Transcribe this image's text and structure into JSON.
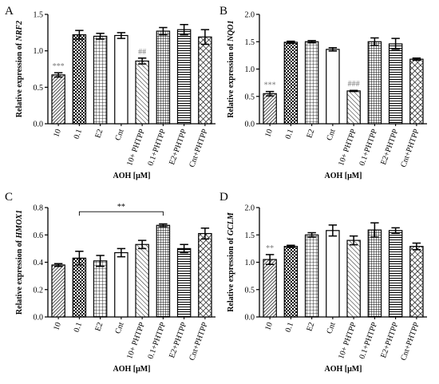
{
  "chart_data": [
    {
      "type": "bar",
      "panel": "A",
      "ylabel_prefix": "Relative expression of ",
      "ylabel_gene": "NRF2",
      "xlabel": "AOH [μM]",
      "ylim": [
        0,
        1.5
      ],
      "yticks": [
        "0.0",
        "0.5",
        "1.0",
        "1.5"
      ],
      "categories": [
        "10",
        "0.1",
        "E2",
        "Cnt",
        "10+ PHTPP",
        "0.1+PHTPP",
        "E2+PHTPP",
        "Cnt+PHTPP"
      ],
      "values": [
        0.67,
        1.22,
        1.2,
        1.21,
        0.86,
        1.27,
        1.29,
        1.19
      ],
      "errors": [
        0.03,
        0.06,
        0.04,
        0.04,
        0.04,
        0.05,
        0.07,
        0.1
      ],
      "annotations": [
        {
          "text": "***",
          "category": 0
        },
        {
          "text": "##",
          "category": 4
        }
      ],
      "bracket": null
    },
    {
      "type": "bar",
      "panel": "B",
      "ylabel_prefix": "Relative expression of ",
      "ylabel_gene": "NQO1",
      "xlabel": "AOH [μM]",
      "ylim": [
        0,
        2.0
      ],
      "yticks": [
        "0.0",
        "0.5",
        "1.0",
        "1.5",
        "2.0"
      ],
      "categories": [
        "10",
        "0.1",
        "E2",
        "Cnt",
        "10+ PHTPP",
        "0.1+PHTPP",
        "E2+PHTPP",
        "Cnt+PHTPP"
      ],
      "values": [
        0.55,
        1.49,
        1.5,
        1.36,
        0.6,
        1.5,
        1.46,
        1.18
      ],
      "errors": [
        0.04,
        0.02,
        0.02,
        0.03,
        0.01,
        0.07,
        0.1,
        0.02
      ],
      "annotations": [
        {
          "text": "***",
          "category": 0
        },
        {
          "text": "###",
          "category": 4
        }
      ],
      "bracket": null
    },
    {
      "type": "bar",
      "panel": "C",
      "ylabel_prefix": "Relative expression of ",
      "ylabel_gene": "HMOX1",
      "xlabel": "AOH [μM]",
      "ylim": [
        0,
        0.8
      ],
      "yticks": [
        "0.0",
        "0.2",
        "0.4",
        "0.6",
        "0.8"
      ],
      "categories": [
        "10",
        "0.1",
        "E2",
        "Cnt",
        "10+ PHTPP",
        "0.1+PHTPP",
        "E2+PHTPP",
        "Cnt+PHTPP"
      ],
      "values": [
        0.38,
        0.43,
        0.41,
        0.47,
        0.53,
        0.67,
        0.5,
        0.61
      ],
      "errors": [
        0.01,
        0.05,
        0.04,
        0.03,
        0.03,
        0.01,
        0.03,
        0.04
      ],
      "annotations": [],
      "bracket": {
        "text": "**",
        "from": 1,
        "to": 5,
        "y": 0.77
      }
    },
    {
      "type": "bar",
      "panel": "D",
      "ylabel_prefix": "Relative expression of ",
      "ylabel_gene": "GCLM",
      "xlabel": "AOH [μM]",
      "ylim": [
        0,
        2.0
      ],
      "yticks": [
        "0.0",
        "0.5",
        "1.0",
        "1.5",
        "2.0"
      ],
      "categories": [
        "10",
        "0.1",
        "E2",
        "Cnt",
        "10+ PHTPP",
        "0.1+PHTPP",
        "E2+PHTPP",
        "Cnt+PHTPP"
      ],
      "values": [
        1.05,
        1.29,
        1.5,
        1.58,
        1.4,
        1.59,
        1.58,
        1.29
      ],
      "errors": [
        0.09,
        0.02,
        0.04,
        0.1,
        0.08,
        0.13,
        0.05,
        0.06
      ],
      "annotations": [
        {
          "text": "**",
          "category": 0
        }
      ],
      "bracket": null
    }
  ],
  "bar_fills": [
    "diag-dense",
    "checker",
    "grid",
    "plain",
    "diag-sparse",
    "grid-fine",
    "horiz",
    "crosshatch"
  ],
  "colors": {
    "axis": "#000000",
    "bar_stroke": "#000000",
    "annotation": "#7a7a7a",
    "background": "#ffffff"
  }
}
